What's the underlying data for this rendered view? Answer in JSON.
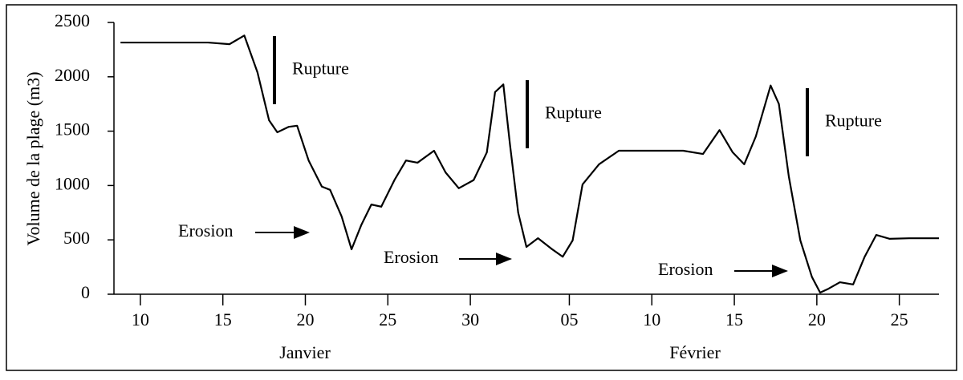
{
  "chart_data": {
    "type": "line",
    "ylabel": "Volume de la plage (m3)",
    "x": [
      8.8,
      11.2,
      14.1,
      15.4,
      16.3,
      17.1,
      17.8,
      18.3,
      19.0,
      19.5,
      20.2,
      21.0,
      21.5,
      22.2,
      22.8,
      23.4,
      24.0,
      24.6,
      25.4,
      26.1,
      26.8,
      27.8,
      28.5,
      29.3,
      30.2,
      31.0,
      31.5,
      32.0,
      32.4,
      32.9,
      33.4,
      34.1,
      34.9,
      35.6,
      36.2,
      36.8,
      37.8,
      39.0,
      40.5,
      42.9,
      44.1,
      45.1,
      45.9,
      46.6,
      47.3,
      48.2,
      48.7,
      49.3,
      50.0,
      50.7,
      51.2,
      51.7,
      52.4,
      53.2,
      53.9,
      54.6,
      55.4,
      56.6,
      58.4
    ],
    "series": [
      {
        "color": "#000000",
        "values": [
          2315,
          2315,
          2315,
          2300,
          2380,
          2040,
          1600,
          1490,
          1540,
          1550,
          1230,
          990,
          960,
          715,
          413,
          640,
          825,
          805,
          1050,
          1230,
          1210,
          1320,
          1120,
          975,
          1050,
          1305,
          1860,
          1930,
          1380,
          750,
          435,
          515,
          420,
          345,
          495,
          1010,
          1195,
          1320,
          1320,
          1320,
          1290,
          1510,
          1305,
          1195,
          1450,
          1920,
          1750,
          1085,
          495,
          160,
          15,
          50,
          110,
          90,
          345,
          545,
          510,
          515,
          515
        ]
      }
    ],
    "xlim": [
      8.4,
      58.4
    ],
    "xticks": [
      10,
      15,
      20,
      25,
      30,
      {
        "value": 36,
        "label": "05"
      },
      {
        "value": 41,
        "label": "10"
      },
      {
        "value": 46,
        "label": "15"
      },
      {
        "value": 51,
        "label": "20"
      },
      {
        "value": 56,
        "label": "25"
      }
    ],
    "ylim": [
      0,
      2500
    ],
    "yticks": [
      0,
      500,
      1000,
      1500,
      2000,
      2500
    ],
    "months": [
      "Janvier",
      "Février"
    ],
    "annotations": [
      "Rupture",
      "Rupture",
      "Rupture",
      "Erosion",
      "Erosion",
      "Erosion"
    ]
  }
}
